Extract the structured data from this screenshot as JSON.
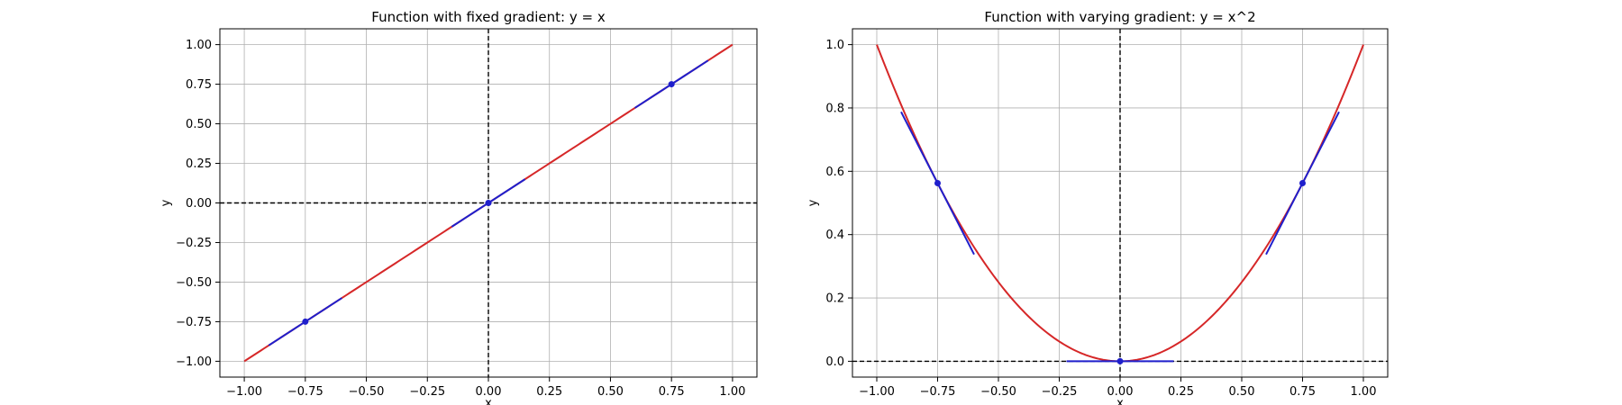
{
  "chart_data": [
    {
      "type": "line",
      "title": "Function with fixed gradient: y = x",
      "xlabel": "x",
      "ylabel": "y",
      "xlim": [
        -1.1,
        1.1
      ],
      "ylim": [
        -1.1,
        1.1
      ],
      "xticks": [
        -1.0,
        -0.75,
        -0.5,
        -0.25,
        0.0,
        0.25,
        0.5,
        0.75,
        1.0
      ],
      "yticks": [
        -1.0,
        -0.75,
        -0.5,
        -0.25,
        0.0,
        0.25,
        0.5,
        0.75,
        1.0
      ],
      "xtick_labels": [
        "−1.00",
        "−0.75",
        "−0.50",
        "−0.25",
        "0.00",
        "0.25",
        "0.50",
        "0.75",
        "1.00"
      ],
      "ytick_labels": [
        "−1.00",
        "−0.75",
        "−0.50",
        "−0.25",
        "0.00",
        "0.25",
        "0.50",
        "0.75",
        "1.00"
      ],
      "grid": true,
      "curve": {
        "function": "y = x",
        "x_range": [
          -1.0,
          1.0
        ],
        "color": "#d62728"
      },
      "tangents": [
        {
          "point": [
            -0.75,
            -0.75
          ],
          "slope": 1,
          "x_range": [
            -0.9,
            -0.6
          ]
        },
        {
          "point": [
            0.0,
            0.0
          ],
          "slope": 1,
          "x_range": [
            -0.15,
            0.15
          ]
        },
        {
          "point": [
            0.75,
            0.75
          ],
          "slope": 1,
          "x_range": [
            0.6,
            0.9
          ]
        }
      ],
      "tangent_color": "#1f1fcc",
      "reference_lines": {
        "x": 0,
        "y": 0,
        "style": "dashed",
        "color": "#000000"
      }
    },
    {
      "type": "line",
      "title": "Function with varying gradient: y = x^2",
      "xlabel": "x",
      "ylabel": "y",
      "xlim": [
        -1.1,
        1.1
      ],
      "ylim": [
        -0.05,
        1.05
      ],
      "xticks": [
        -1.0,
        -0.75,
        -0.5,
        -0.25,
        0.0,
        0.25,
        0.5,
        0.75,
        1.0
      ],
      "yticks": [
        0.0,
        0.2,
        0.4,
        0.6,
        0.8,
        1.0
      ],
      "xtick_labels": [
        "−1.00",
        "−0.75",
        "−0.50",
        "−0.25",
        "0.00",
        "0.25",
        "0.50",
        "0.75",
        "1.00"
      ],
      "ytick_labels": [
        "0.0",
        "0.2",
        "0.4",
        "0.6",
        "0.8",
        "1.0"
      ],
      "grid": true,
      "curve": {
        "function": "y = x^2",
        "x_range": [
          -1.0,
          1.0
        ],
        "color": "#d62728"
      },
      "tangents": [
        {
          "point": [
            -0.75,
            0.5625
          ],
          "slope": -1.5,
          "x_range": [
            -0.9,
            -0.6
          ]
        },
        {
          "point": [
            0.0,
            0.0
          ],
          "slope": 0,
          "x_range": [
            -0.22,
            0.22
          ]
        },
        {
          "point": [
            0.75,
            0.5625
          ],
          "slope": 1.5,
          "x_range": [
            0.6,
            0.9
          ]
        }
      ],
      "tangent_color": "#1f1fcc",
      "reference_lines": {
        "x": 0,
        "y": 0,
        "style": "dashed",
        "color": "#000000"
      }
    }
  ]
}
